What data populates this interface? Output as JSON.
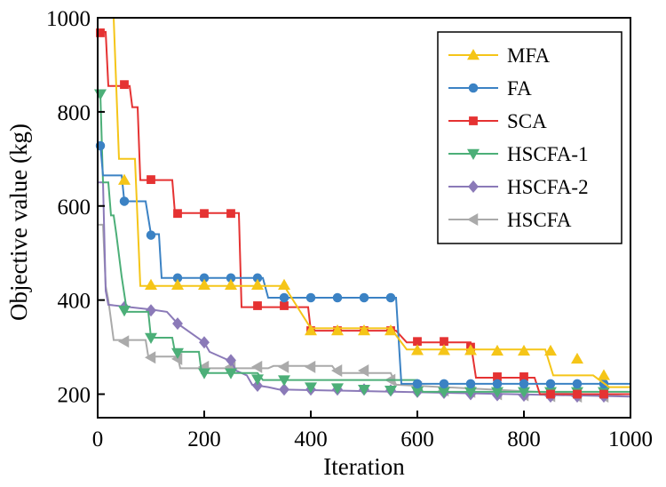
{
  "chart_data": {
    "type": "line",
    "title": "",
    "xlabel": "Iteration",
    "ylabel": "Objective value (kg)",
    "xlim": [
      0,
      1000
    ],
    "ylim": [
      150,
      1000
    ],
    "xticks": [
      0,
      200,
      400,
      600,
      800,
      1000
    ],
    "yticks": [
      200,
      400,
      600,
      800,
      1000
    ],
    "grid": false,
    "legend_position": "top-right",
    "series": [
      {
        "name": "MFA",
        "color": "#f5c518",
        "marker": "triangle-up",
        "points": [
          [
            0,
            1000
          ],
          [
            30,
            1000
          ],
          [
            40,
            700
          ],
          [
            70,
            700
          ],
          [
            80,
            430
          ],
          [
            350,
            430
          ],
          [
            400,
            340
          ],
          [
            550,
            340
          ],
          [
            580,
            295
          ],
          [
            840,
            295
          ],
          [
            855,
            240
          ],
          [
            930,
            240
          ],
          [
            960,
            215
          ],
          [
            1000,
            215
          ]
        ],
        "markers": [
          [
            50,
            655
          ],
          [
            100,
            432
          ],
          [
            150,
            432
          ],
          [
            200,
            432
          ],
          [
            250,
            432
          ],
          [
            300,
            432
          ],
          [
            350,
            432
          ],
          [
            400,
            335
          ],
          [
            450,
            335
          ],
          [
            500,
            335
          ],
          [
            550,
            335
          ],
          [
            600,
            293
          ],
          [
            650,
            293
          ],
          [
            700,
            293
          ],
          [
            750,
            292
          ],
          [
            800,
            292
          ],
          [
            850,
            292
          ],
          [
            900,
            275
          ],
          [
            950,
            240
          ]
        ]
      },
      {
        "name": "FA",
        "color": "#3b82c4",
        "marker": "circle",
        "points": [
          [
            0,
            730
          ],
          [
            5,
            730
          ],
          [
            10,
            665
          ],
          [
            45,
            665
          ],
          [
            50,
            610
          ],
          [
            90,
            610
          ],
          [
            100,
            540
          ],
          [
            115,
            540
          ],
          [
            120,
            447
          ],
          [
            310,
            447
          ],
          [
            320,
            405
          ],
          [
            560,
            405
          ],
          [
            570,
            222
          ],
          [
            1000,
            222
          ]
        ],
        "markers": [
          [
            5,
            728
          ],
          [
            50,
            610
          ],
          [
            100,
            538
          ],
          [
            150,
            447
          ],
          [
            200,
            447
          ],
          [
            250,
            447
          ],
          [
            300,
            447
          ],
          [
            350,
            405
          ],
          [
            400,
            405
          ],
          [
            450,
            405
          ],
          [
            500,
            405
          ],
          [
            550,
            405
          ],
          [
            600,
            222
          ],
          [
            650,
            222
          ],
          [
            700,
            222
          ],
          [
            750,
            222
          ],
          [
            800,
            222
          ],
          [
            850,
            222
          ],
          [
            900,
            222
          ],
          [
            950,
            222
          ]
        ]
      },
      {
        "name": "SCA",
        "color": "#e53232",
        "marker": "square",
        "points": [
          [
            0,
            970
          ],
          [
            15,
            970
          ],
          [
            20,
            855
          ],
          [
            60,
            855
          ],
          [
            65,
            810
          ],
          [
            75,
            810
          ],
          [
            80,
            655
          ],
          [
            140,
            655
          ],
          [
            145,
            585
          ],
          [
            265,
            585
          ],
          [
            270,
            385
          ],
          [
            395,
            385
          ],
          [
            400,
            335
          ],
          [
            560,
            335
          ],
          [
            580,
            310
          ],
          [
            700,
            310
          ],
          [
            710,
            235
          ],
          [
            820,
            235
          ],
          [
            830,
            200
          ],
          [
            1000,
            200
          ]
        ],
        "markers": [
          [
            5,
            968
          ],
          [
            50,
            858
          ],
          [
            100,
            656
          ],
          [
            150,
            584
          ],
          [
            200,
            584
          ],
          [
            250,
            584
          ],
          [
            300,
            388
          ],
          [
            350,
            388
          ],
          [
            400,
            335
          ],
          [
            450,
            335
          ],
          [
            500,
            335
          ],
          [
            550,
            335
          ],
          [
            600,
            312
          ],
          [
            650,
            312
          ],
          [
            700,
            300
          ],
          [
            750,
            237
          ],
          [
            800,
            237
          ],
          [
            850,
            200
          ],
          [
            900,
            200
          ],
          [
            950,
            200
          ]
        ]
      },
      {
        "name": "HSCFA-1",
        "color": "#4caf78",
        "marker": "triangle-down",
        "points": [
          [
            0,
            840
          ],
          [
            5,
            840
          ],
          [
            10,
            650
          ],
          [
            20,
            650
          ],
          [
            25,
            580
          ],
          [
            30,
            580
          ],
          [
            35,
            540
          ],
          [
            45,
            450
          ],
          [
            55,
            375
          ],
          [
            95,
            375
          ],
          [
            100,
            320
          ],
          [
            140,
            320
          ],
          [
            145,
            290
          ],
          [
            190,
            290
          ],
          [
            195,
            245
          ],
          [
            300,
            245
          ],
          [
            310,
            230
          ],
          [
            600,
            230
          ],
          [
            610,
            205
          ],
          [
            1000,
            205
          ]
        ],
        "markers": [
          [
            5,
            838
          ],
          [
            50,
            378
          ],
          [
            100,
            320
          ],
          [
            150,
            288
          ],
          [
            200,
            245
          ],
          [
            250,
            245
          ],
          [
            300,
            232
          ],
          [
            350,
            230
          ],
          [
            400,
            215
          ],
          [
            450,
            213
          ],
          [
            500,
            210
          ],
          [
            550,
            208
          ],
          [
            600,
            206
          ],
          [
            650,
            205
          ],
          [
            700,
            205
          ],
          [
            750,
            205
          ],
          [
            800,
            205
          ],
          [
            850,
            205
          ],
          [
            900,
            205
          ],
          [
            950,
            205
          ]
        ]
      },
      {
        "name": "HSCFA-2",
        "color": "#8b7ab8",
        "marker": "diamond",
        "points": [
          [
            0,
            650
          ],
          [
            10,
            650
          ],
          [
            15,
            420
          ],
          [
            20,
            390
          ],
          [
            100,
            380
          ],
          [
            130,
            375
          ],
          [
            150,
            350
          ],
          [
            200,
            310
          ],
          [
            210,
            290
          ],
          [
            250,
            270
          ],
          [
            260,
            250
          ],
          [
            280,
            240
          ],
          [
            290,
            220
          ],
          [
            320,
            215
          ],
          [
            340,
            210
          ],
          [
            1000,
            195
          ]
        ],
        "markers": [
          [
            50,
            385
          ],
          [
            100,
            378
          ],
          [
            150,
            350
          ],
          [
            200,
            310
          ],
          [
            250,
            272
          ],
          [
            300,
            218
          ],
          [
            350,
            210
          ],
          [
            400,
            210
          ],
          [
            450,
            210
          ],
          [
            500,
            210
          ],
          [
            550,
            208
          ],
          [
            600,
            205
          ],
          [
            650,
            203
          ],
          [
            700,
            200
          ],
          [
            750,
            198
          ],
          [
            800,
            197
          ],
          [
            850,
            195
          ],
          [
            900,
            195
          ],
          [
            950,
            195
          ]
        ]
      },
      {
        "name": "HSCFA",
        "color": "#aaaaaa",
        "marker": "triangle-left",
        "points": [
          [
            0,
            560
          ],
          [
            10,
            560
          ],
          [
            15,
            430
          ],
          [
            20,
            400
          ],
          [
            30,
            315
          ],
          [
            90,
            315
          ],
          [
            95,
            280
          ],
          [
            150,
            280
          ],
          [
            155,
            255
          ],
          [
            320,
            255
          ],
          [
            330,
            260
          ],
          [
            440,
            260
          ],
          [
            450,
            245
          ],
          [
            550,
            245
          ],
          [
            560,
            220
          ],
          [
            1000,
            195
          ]
        ],
        "markers": [
          [
            50,
            312
          ],
          [
            100,
            278
          ],
          [
            150,
            275
          ],
          [
            200,
            258
          ],
          [
            250,
            258
          ],
          [
            300,
            258
          ],
          [
            350,
            258
          ],
          [
            400,
            258
          ],
          [
            450,
            250
          ],
          [
            500,
            250
          ],
          [
            550,
            230
          ],
          [
            600,
            215
          ],
          [
            650,
            208
          ],
          [
            700,
            205
          ],
          [
            750,
            200
          ],
          [
            800,
            198
          ],
          [
            850,
            196
          ],
          [
            900,
            195
          ],
          [
            950,
            195
          ]
        ]
      }
    ]
  }
}
